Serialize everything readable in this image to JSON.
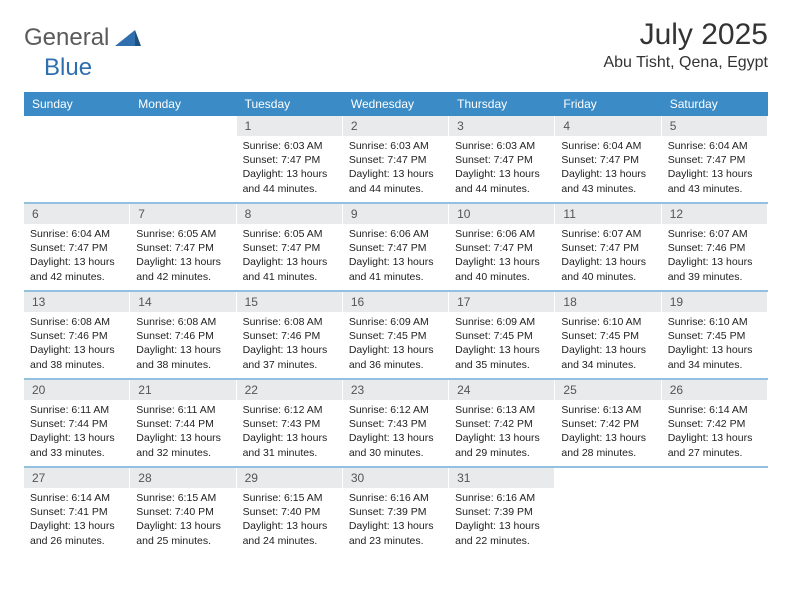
{
  "logo": {
    "text_general": "General",
    "text_blue": "Blue",
    "shape_color": "#2f6fad"
  },
  "title": {
    "month": "July 2025",
    "location": "Abu Tisht, Qena, Egypt"
  },
  "colors": {
    "header_bg": "#3b8bc6",
    "header_text": "#ffffff",
    "daynum_bg": "#e9eaeb",
    "daynum_text": "#555555",
    "body_text": "#222222",
    "separator": "#3b8bc6"
  },
  "weekdays": [
    "Sunday",
    "Monday",
    "Tuesday",
    "Wednesday",
    "Thursday",
    "Friday",
    "Saturday"
  ],
  "weeks": [
    [
      null,
      null,
      {
        "num": "1",
        "sunrise": "Sunrise: 6:03 AM",
        "sunset": "Sunset: 7:47 PM",
        "day1": "Daylight: 13 hours",
        "day2": "and 44 minutes."
      },
      {
        "num": "2",
        "sunrise": "Sunrise: 6:03 AM",
        "sunset": "Sunset: 7:47 PM",
        "day1": "Daylight: 13 hours",
        "day2": "and 44 minutes."
      },
      {
        "num": "3",
        "sunrise": "Sunrise: 6:03 AM",
        "sunset": "Sunset: 7:47 PM",
        "day1": "Daylight: 13 hours",
        "day2": "and 44 minutes."
      },
      {
        "num": "4",
        "sunrise": "Sunrise: 6:04 AM",
        "sunset": "Sunset: 7:47 PM",
        "day1": "Daylight: 13 hours",
        "day2": "and 43 minutes."
      },
      {
        "num": "5",
        "sunrise": "Sunrise: 6:04 AM",
        "sunset": "Sunset: 7:47 PM",
        "day1": "Daylight: 13 hours",
        "day2": "and 43 minutes."
      }
    ],
    [
      {
        "num": "6",
        "sunrise": "Sunrise: 6:04 AM",
        "sunset": "Sunset: 7:47 PM",
        "day1": "Daylight: 13 hours",
        "day2": "and 42 minutes."
      },
      {
        "num": "7",
        "sunrise": "Sunrise: 6:05 AM",
        "sunset": "Sunset: 7:47 PM",
        "day1": "Daylight: 13 hours",
        "day2": "and 42 minutes."
      },
      {
        "num": "8",
        "sunrise": "Sunrise: 6:05 AM",
        "sunset": "Sunset: 7:47 PM",
        "day1": "Daylight: 13 hours",
        "day2": "and 41 minutes."
      },
      {
        "num": "9",
        "sunrise": "Sunrise: 6:06 AM",
        "sunset": "Sunset: 7:47 PM",
        "day1": "Daylight: 13 hours",
        "day2": "and 41 minutes."
      },
      {
        "num": "10",
        "sunrise": "Sunrise: 6:06 AM",
        "sunset": "Sunset: 7:47 PM",
        "day1": "Daylight: 13 hours",
        "day2": "and 40 minutes."
      },
      {
        "num": "11",
        "sunrise": "Sunrise: 6:07 AM",
        "sunset": "Sunset: 7:47 PM",
        "day1": "Daylight: 13 hours",
        "day2": "and 40 minutes."
      },
      {
        "num": "12",
        "sunrise": "Sunrise: 6:07 AM",
        "sunset": "Sunset: 7:46 PM",
        "day1": "Daylight: 13 hours",
        "day2": "and 39 minutes."
      }
    ],
    [
      {
        "num": "13",
        "sunrise": "Sunrise: 6:08 AM",
        "sunset": "Sunset: 7:46 PM",
        "day1": "Daylight: 13 hours",
        "day2": "and 38 minutes."
      },
      {
        "num": "14",
        "sunrise": "Sunrise: 6:08 AM",
        "sunset": "Sunset: 7:46 PM",
        "day1": "Daylight: 13 hours",
        "day2": "and 38 minutes."
      },
      {
        "num": "15",
        "sunrise": "Sunrise: 6:08 AM",
        "sunset": "Sunset: 7:46 PM",
        "day1": "Daylight: 13 hours",
        "day2": "and 37 minutes."
      },
      {
        "num": "16",
        "sunrise": "Sunrise: 6:09 AM",
        "sunset": "Sunset: 7:45 PM",
        "day1": "Daylight: 13 hours",
        "day2": "and 36 minutes."
      },
      {
        "num": "17",
        "sunrise": "Sunrise: 6:09 AM",
        "sunset": "Sunset: 7:45 PM",
        "day1": "Daylight: 13 hours",
        "day2": "and 35 minutes."
      },
      {
        "num": "18",
        "sunrise": "Sunrise: 6:10 AM",
        "sunset": "Sunset: 7:45 PM",
        "day1": "Daylight: 13 hours",
        "day2": "and 34 minutes."
      },
      {
        "num": "19",
        "sunrise": "Sunrise: 6:10 AM",
        "sunset": "Sunset: 7:45 PM",
        "day1": "Daylight: 13 hours",
        "day2": "and 34 minutes."
      }
    ],
    [
      {
        "num": "20",
        "sunrise": "Sunrise: 6:11 AM",
        "sunset": "Sunset: 7:44 PM",
        "day1": "Daylight: 13 hours",
        "day2": "and 33 minutes."
      },
      {
        "num": "21",
        "sunrise": "Sunrise: 6:11 AM",
        "sunset": "Sunset: 7:44 PM",
        "day1": "Daylight: 13 hours",
        "day2": "and 32 minutes."
      },
      {
        "num": "22",
        "sunrise": "Sunrise: 6:12 AM",
        "sunset": "Sunset: 7:43 PM",
        "day1": "Daylight: 13 hours",
        "day2": "and 31 minutes."
      },
      {
        "num": "23",
        "sunrise": "Sunrise: 6:12 AM",
        "sunset": "Sunset: 7:43 PM",
        "day1": "Daylight: 13 hours",
        "day2": "and 30 minutes."
      },
      {
        "num": "24",
        "sunrise": "Sunrise: 6:13 AM",
        "sunset": "Sunset: 7:42 PM",
        "day1": "Daylight: 13 hours",
        "day2": "and 29 minutes."
      },
      {
        "num": "25",
        "sunrise": "Sunrise: 6:13 AM",
        "sunset": "Sunset: 7:42 PM",
        "day1": "Daylight: 13 hours",
        "day2": "and 28 minutes."
      },
      {
        "num": "26",
        "sunrise": "Sunrise: 6:14 AM",
        "sunset": "Sunset: 7:42 PM",
        "day1": "Daylight: 13 hours",
        "day2": "and 27 minutes."
      }
    ],
    [
      {
        "num": "27",
        "sunrise": "Sunrise: 6:14 AM",
        "sunset": "Sunset: 7:41 PM",
        "day1": "Daylight: 13 hours",
        "day2": "and 26 minutes."
      },
      {
        "num": "28",
        "sunrise": "Sunrise: 6:15 AM",
        "sunset": "Sunset: 7:40 PM",
        "day1": "Daylight: 13 hours",
        "day2": "and 25 minutes."
      },
      {
        "num": "29",
        "sunrise": "Sunrise: 6:15 AM",
        "sunset": "Sunset: 7:40 PM",
        "day1": "Daylight: 13 hours",
        "day2": "and 24 minutes."
      },
      {
        "num": "30",
        "sunrise": "Sunrise: 6:16 AM",
        "sunset": "Sunset: 7:39 PM",
        "day1": "Daylight: 13 hours",
        "day2": "and 23 minutes."
      },
      {
        "num": "31",
        "sunrise": "Sunrise: 6:16 AM",
        "sunset": "Sunset: 7:39 PM",
        "day1": "Daylight: 13 hours",
        "day2": "and 22 minutes."
      },
      null,
      null
    ]
  ]
}
